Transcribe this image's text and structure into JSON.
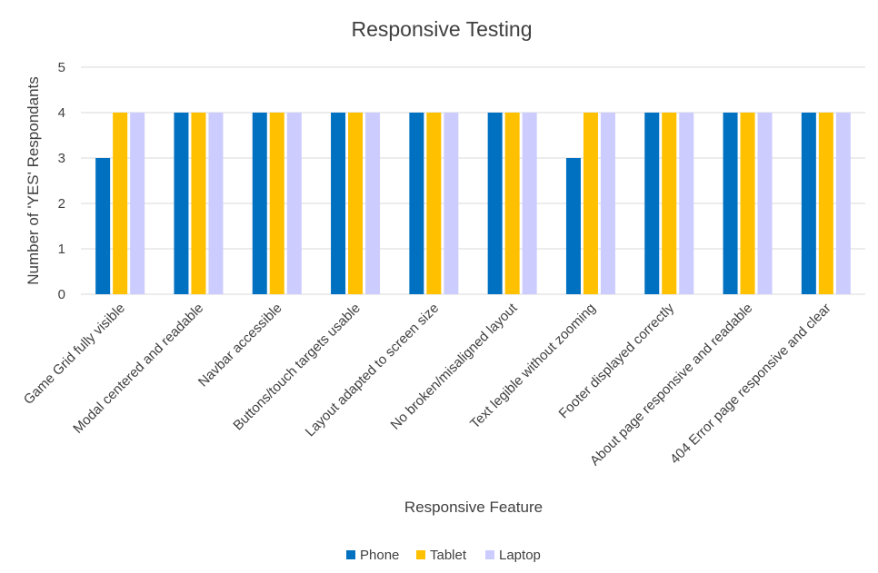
{
  "chart_data": {
    "type": "bar",
    "title": "Responsive Testing",
    "xlabel": "Responsive Feature",
    "ylabel": "Number of 'YES' Respondants",
    "ylim": [
      0,
      5
    ],
    "yticks": [
      0,
      1,
      2,
      3,
      4,
      5
    ],
    "grid": true,
    "legend": "bottom",
    "categories": [
      "Game Grid fully visible",
      "Modal centered and readable",
      "Navbar accessible",
      "Buttons/touch targets usable",
      "Layout adapted to screen size",
      "No broken/misaligned layout",
      "Text legible without zooming",
      "Footer displayed correctly",
      "About page responsive and readable",
      "404 Error page responsive and clear"
    ],
    "series": [
      {
        "name": "Phone",
        "color": "#0070c0",
        "values": [
          3,
          4,
          4,
          4,
          4,
          4,
          3,
          4,
          4,
          4
        ]
      },
      {
        "name": "Tablet",
        "color": "#ffc000",
        "values": [
          4,
          4,
          4,
          4,
          4,
          4,
          4,
          4,
          4,
          4
        ]
      },
      {
        "name": "Laptop",
        "color": "#ccccff",
        "values": [
          4,
          4,
          4,
          4,
          4,
          4,
          4,
          4,
          4,
          4
        ]
      }
    ]
  }
}
